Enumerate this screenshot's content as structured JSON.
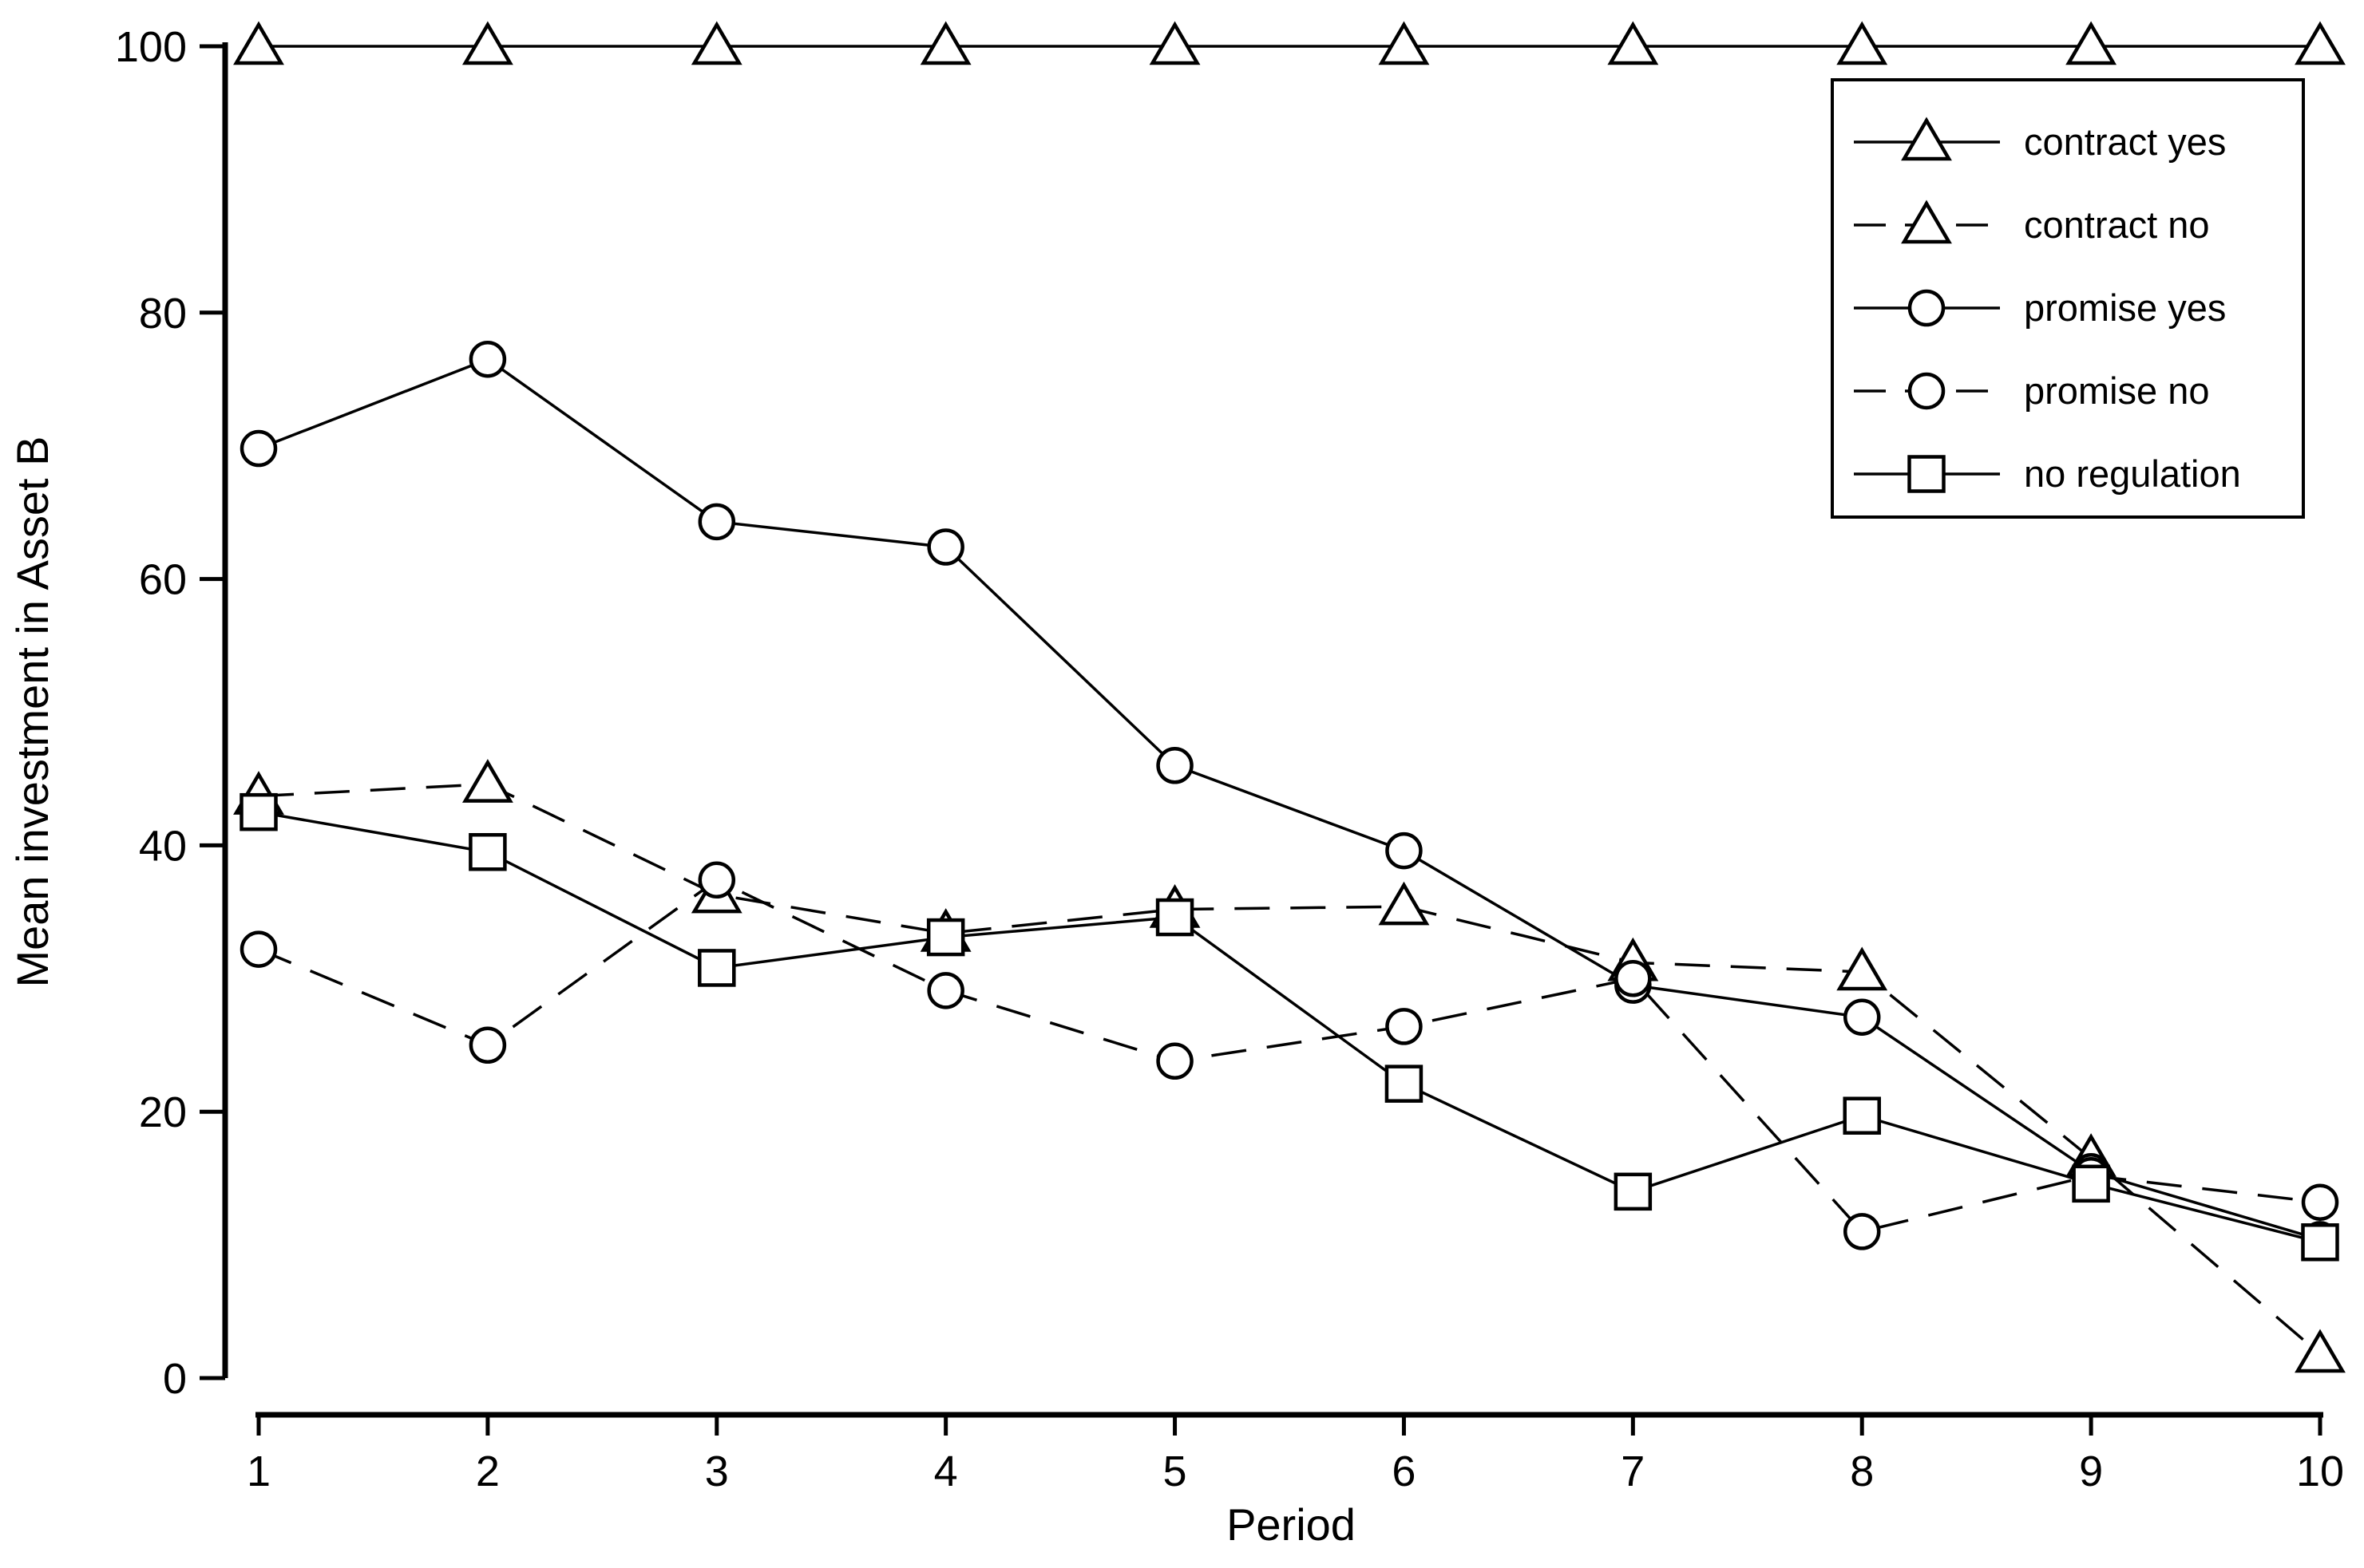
{
  "chart_data": {
    "type": "line",
    "title": "",
    "xlabel": "Period",
    "ylabel": "Mean investment in Asset B",
    "x": [
      1,
      2,
      3,
      4,
      5,
      6,
      7,
      8,
      9,
      10
    ],
    "xticks": [
      1,
      2,
      3,
      4,
      5,
      6,
      7,
      8,
      9,
      10
    ],
    "yticks": [
      0,
      20,
      40,
      60,
      80,
      100
    ],
    "xlim": [
      1,
      10
    ],
    "ylim": [
      0,
      100
    ],
    "grid": false,
    "legend_position": "top-right",
    "series": [
      {
        "name": "contract yes",
        "marker": "triangle",
        "line": "solid",
        "values": [
          100,
          100,
          100,
          100,
          100,
          100,
          100,
          100,
          100,
          100
        ]
      },
      {
        "name": "contract no",
        "marker": "triangle",
        "line": "dashed",
        "values": [
          43.7,
          44.6,
          36.3,
          33.4,
          35.2,
          35.4,
          31.2,
          30.5,
          16.5,
          1.8
        ]
      },
      {
        "name": "promise yes",
        "marker": "circle",
        "line": "solid",
        "values": [
          69.8,
          76.5,
          64.3,
          62.4,
          46.0,
          39.6,
          29.5,
          27.1,
          15.5,
          10.4
        ]
      },
      {
        "name": "promise no",
        "marker": "circle",
        "line": "dashed",
        "values": [
          32.2,
          25.0,
          37.4,
          29.1,
          23.8,
          26.4,
          30.0,
          11.0,
          15.2,
          13.2
        ]
      },
      {
        "name": "no regulation",
        "marker": "square",
        "line": "solid",
        "values": [
          42.5,
          39.5,
          30.8,
          33.1,
          34.6,
          22.1,
          14.0,
          19.7,
          14.6,
          10.2
        ]
      }
    ],
    "colors": {
      "line": "#000000",
      "marker_fill": "#ffffff",
      "background": "#ffffff",
      "text": "#000000"
    }
  }
}
